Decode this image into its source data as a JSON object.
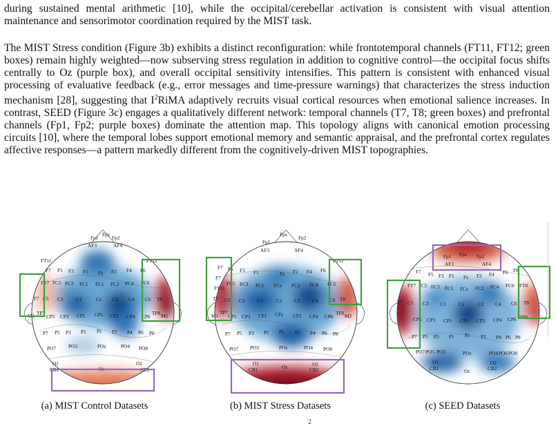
{
  "paragraphs": {
    "p1": "during sustained mental arithmetic [10], while the occipital/cerebellar activation is consistent with visual attention maintenance and sensorimotor coordination required by the MIST task.",
    "p2_a": "The MIST Stress condition (Figure 3b) exhibits a distinct reconfiguration: while frontotemporal channels (FT11, FT12; green boxes) remain highly weighted—now subserving stress regulation in addition to cognitive control—the occipital focus shifts centrally to Oz (purple box), and overall occipital sensitivity intensifies. This pattern is consistent with enhanced visual processing of evaluative feedback (e.g., error messages and time-pressure warnings) that characterizes the stress induction mechanism [28], suggesting that I",
    "p2_sup": "2",
    "p2_b": "RiMA adaptively recruits visual cortical resources when emotional salience increases. In contrast, SEED (Figure 3c) engages a qualitatively different network: temporal channels (T7, T8; green boxes) and prefrontal channels (Fp1, Fp2; purple boxes) dominate the attention map. This topology aligns with canonical emotion processing circuits [10], where the temporal lobes support emotional memory and semantic appraisal, and the prefrontal cortex regulates affective responses—a pattern markedly different from the cognitively-driven MIST topographies."
  },
  "captions": {
    "a": "(a) MIST Control Datasets",
    "b": "(b) MIST Stress Datasets",
    "c": "(c) SEED Datasets"
  },
  "page_number": "2",
  "colors": {
    "blue_dark": "#0d4a8a",
    "blue_mid": "#5e9fcf",
    "blue_light": "#c9def0",
    "red_dark": "#8c1322",
    "red_mid": "#d45a45",
    "red_light": "#f4c6b0",
    "green_box": "#3aa13a",
    "purple_box": "#9466c1"
  },
  "electrodes": [
    "Fp1",
    "Fpz",
    "Fp2",
    "AF3",
    "AF4",
    "F7",
    "F5",
    "F3",
    "F1",
    "Fz",
    "F2",
    "F4",
    "F6",
    "F8",
    "FT7",
    "FC5",
    "FC3",
    "FC1",
    "FCz",
    "FC2",
    "FC4",
    "FC6",
    "FT8",
    "T7",
    "C5",
    "C3",
    "C1",
    "Cz",
    "C2",
    "C4",
    "C6",
    "T8",
    "M1",
    "TP7",
    "CP5",
    "CP3",
    "CP1",
    "CPz",
    "CP2",
    "CP4",
    "CP6",
    "TP8",
    "M2",
    "P7",
    "P5",
    "P3",
    "P1",
    "Pz",
    "P2",
    "P4",
    "P6",
    "P8",
    "PO7",
    "PO5",
    "PO3",
    "POz",
    "PO4",
    "PO6",
    "PO8",
    "CB1",
    "O1",
    "Oz",
    "O2",
    "CB2"
  ],
  "electrodes_mist_extra": [
    "FT11",
    "FT12"
  ]
}
